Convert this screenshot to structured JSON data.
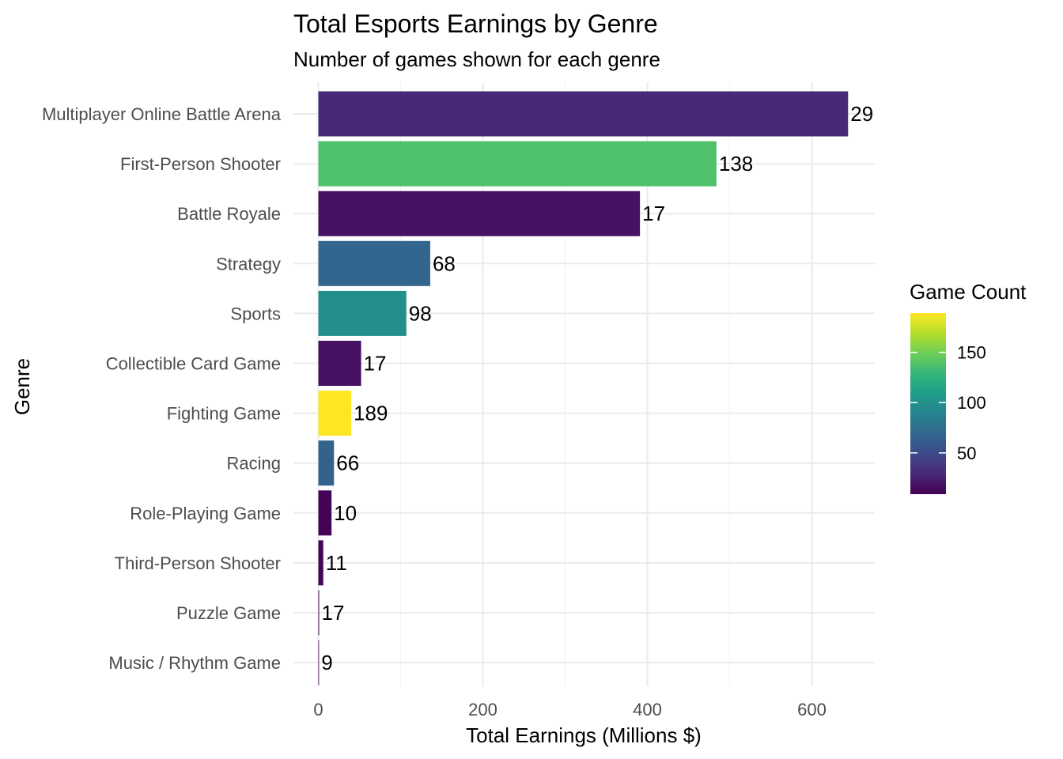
{
  "chart_data": {
    "type": "bar",
    "orientation": "horizontal",
    "title": "Total Esports Earnings by Genre",
    "subtitle": "Number of games shown for each genre",
    "xlabel": "Total Earnings (Millions $)",
    "ylabel": "Genre",
    "xlim": [
      0,
      675
    ],
    "x_ticks": [
      0,
      200,
      400,
      600
    ],
    "grid": true,
    "categories": [
      "Multiplayer Online Battle Arena",
      "First-Person Shooter",
      "Battle Royale",
      "Strategy",
      "Sports",
      "Collectible Card Game",
      "Fighting Game",
      "Racing",
      "Role-Playing Game",
      "Third-Person Shooter",
      "Puzzle Game",
      "Music / Rhythm Game"
    ],
    "values": [
      644,
      484,
      391,
      136,
      107,
      52,
      40,
      19,
      16,
      6,
      1,
      0.1
    ],
    "game_counts": [
      29,
      138,
      17,
      68,
      98,
      17,
      189,
      66,
      10,
      11,
      17,
      9
    ],
    "legend": {
      "title": "Game Count",
      "placement": "right",
      "type": "colorbar",
      "palette": "viridis",
      "min": 9,
      "max": 189,
      "ticks": [
        50,
        100,
        150
      ],
      "colors": [
        "#440154",
        "#482878",
        "#3e4989",
        "#31688e",
        "#26828e",
        "#1f9e89",
        "#35b779",
        "#6ece58",
        "#b5de2b",
        "#fde725"
      ]
    }
  }
}
